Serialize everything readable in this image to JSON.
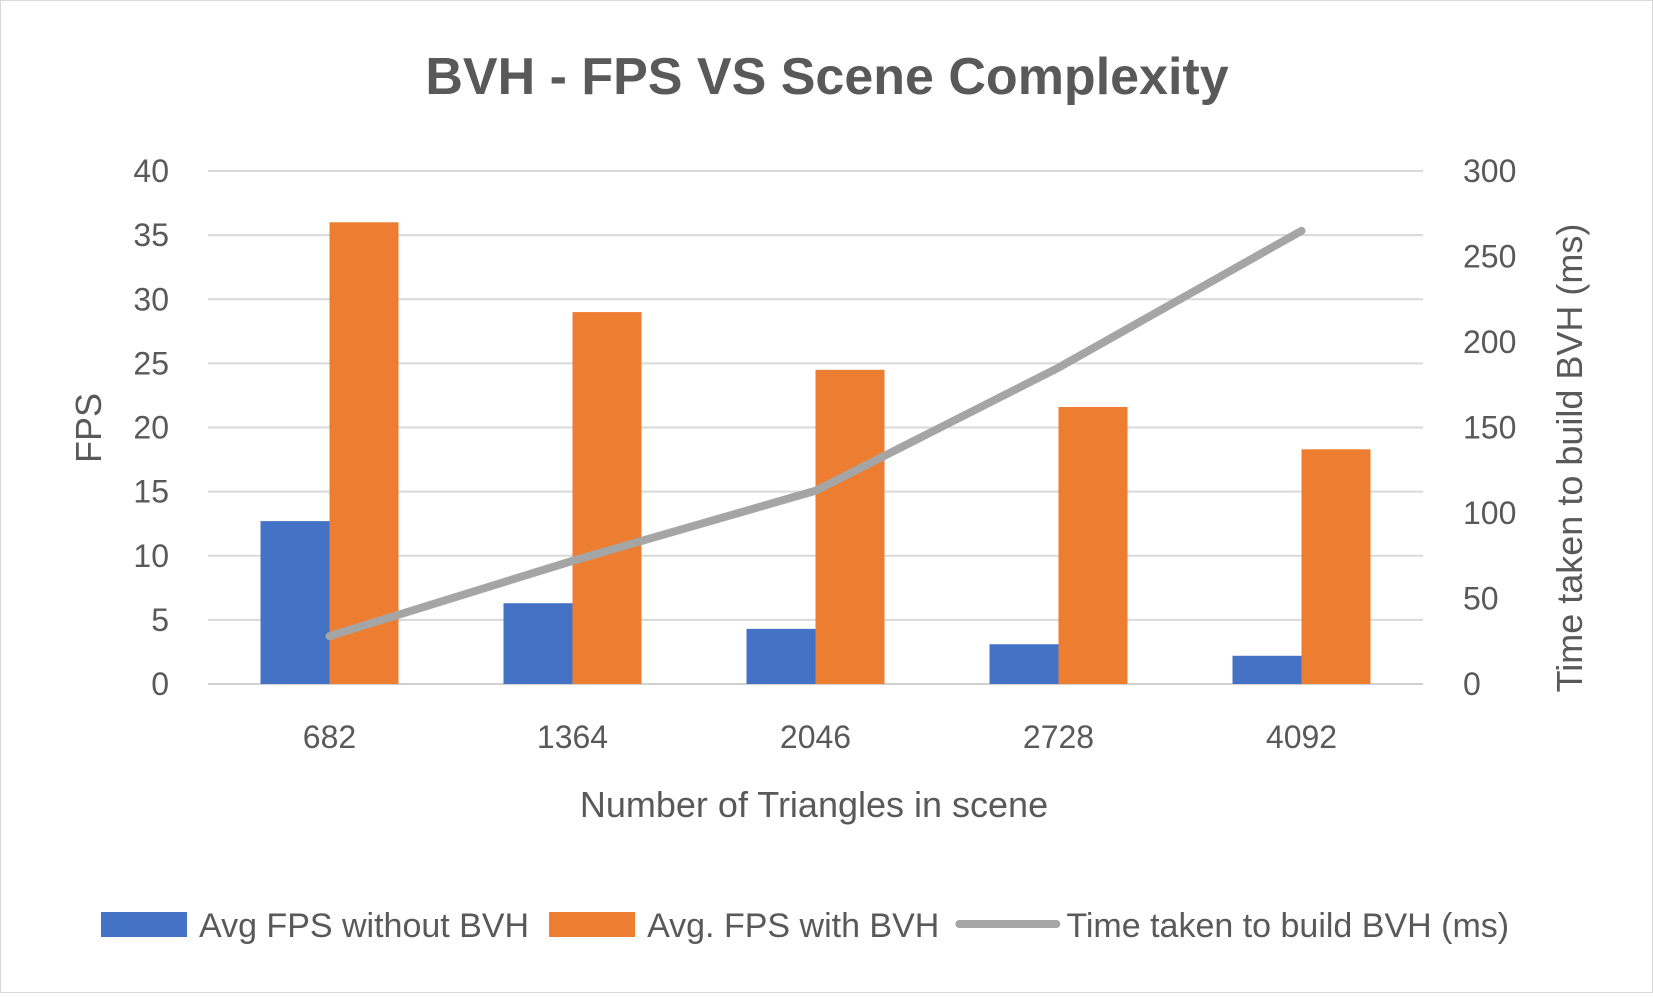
{
  "chart_data": {
    "type": "bar",
    "title": "BVH - FPS VS Scene Complexity",
    "xlabel": "Number of Triangles in scene",
    "ylabel": "FPS",
    "y2label": "Time taken to build BVH (ms)",
    "categories": [
      "682",
      "1364",
      "2046",
      "2728",
      "4092"
    ],
    "ylim": [
      0,
      40
    ],
    "y2lim": [
      0,
      300
    ],
    "yticks": [
      0,
      5,
      10,
      15,
      20,
      25,
      30,
      35,
      40
    ],
    "y2ticks": [
      0,
      50,
      100,
      150,
      200,
      250,
      300
    ],
    "grid": true,
    "legend_position": "bottom",
    "series": [
      {
        "name": "Avg FPS without BVH",
        "type": "bar",
        "axis": "left",
        "color": "#4472C4",
        "values": [
          12.7,
          6.3,
          4.3,
          3.1,
          2.2
        ]
      },
      {
        "name": "Avg. FPS with BVH",
        "type": "bar",
        "axis": "left",
        "color": "#ED7D31",
        "values": [
          36,
          29,
          24.5,
          21.6,
          18.3
        ]
      },
      {
        "name": "Time taken to build BVH (ms)",
        "type": "line",
        "axis": "right",
        "color": "#A5A5A5",
        "values": [
          28,
          72,
          113,
          185,
          265
        ]
      }
    ]
  }
}
